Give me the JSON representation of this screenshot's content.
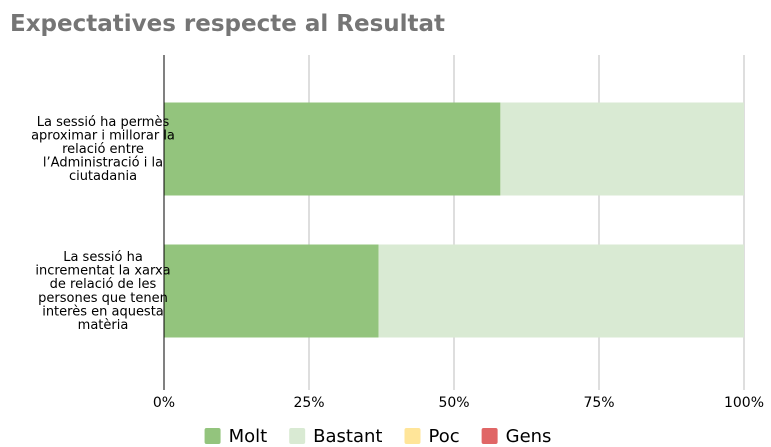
{
  "chart_data": {
    "type": "bar",
    "orientation": "horizontal",
    "stacked": true,
    "title": "Expectatives respecte al Resultat",
    "categories": [
      "La sessió ha permès aproximar i millorar la relació entre l’Administració i la ciutadania",
      "La sessió ha incrementat la xarxa de relació de les persones que tenen interès en aquesta matèria"
    ],
    "series": [
      {
        "name": "Molt",
        "color": "#93c47d",
        "values": [
          58,
          37
        ]
      },
      {
        "name": "Bastant",
        "color": "#d9ead3",
        "values": [
          42,
          63
        ]
      },
      {
        "name": "Poc",
        "color": "#ffe599",
        "values": [
          0,
          0
        ]
      },
      {
        "name": "Gens",
        "color": "#e06666",
        "values": [
          0,
          0
        ]
      }
    ],
    "xlim": [
      0,
      100
    ],
    "xticks": [
      {
        "value": 0,
        "label": "0%"
      },
      {
        "value": 25,
        "label": "25%"
      },
      {
        "value": 50,
        "label": "50%"
      },
      {
        "value": 75,
        "label": "75%"
      },
      {
        "value": 100,
        "label": "100%"
      }
    ],
    "grid": true,
    "legend": "bottom"
  }
}
